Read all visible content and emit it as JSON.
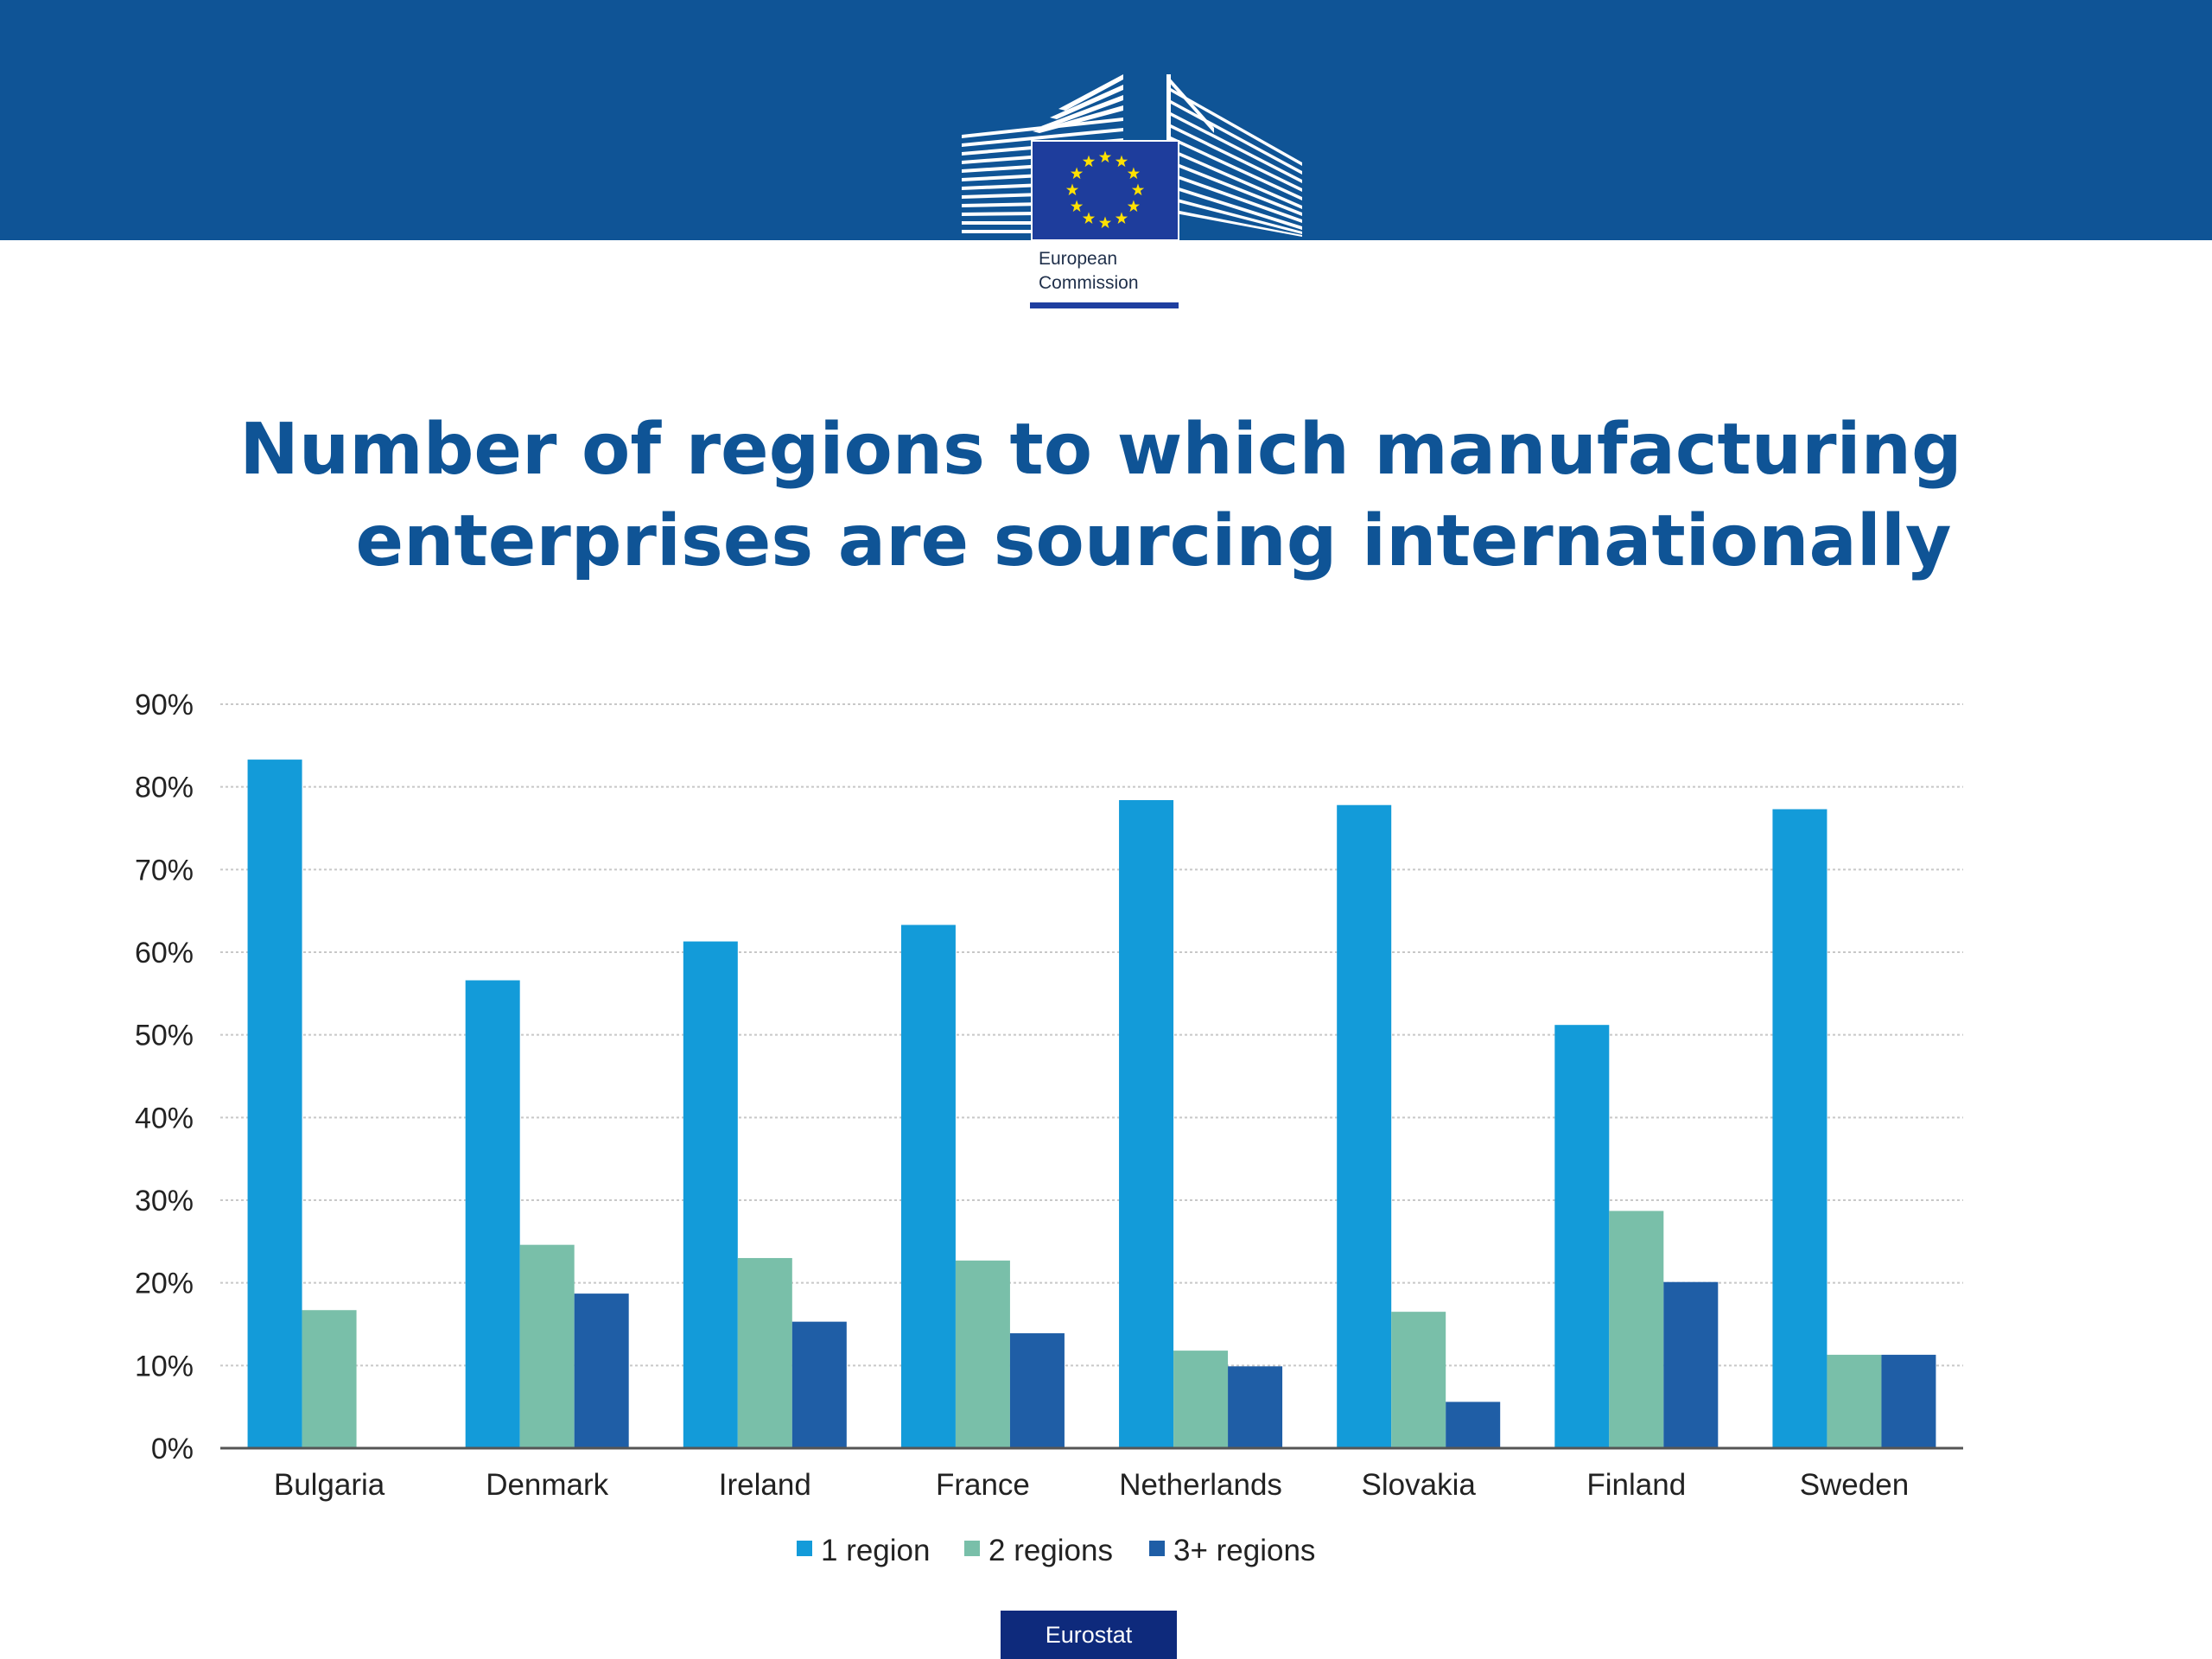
{
  "header": {
    "logo_text_line1": "European",
    "logo_text_line2": "Commission",
    "brand_color": "#0f5496"
  },
  "chart_data": {
    "type": "bar",
    "title_line1": "Number of regions to which manufacturing",
    "title_line2": "enterprises are sourcing internationally",
    "categories": [
      "Bulgaria",
      "Denmark",
      "Ireland",
      "France",
      "Netherlands",
      "Slovakia",
      "Finland",
      "Sweden"
    ],
    "series": [
      {
        "name": "1 region",
        "color": "#139bd9",
        "values": [
          83.3,
          56.6,
          61.3,
          63.3,
          78.4,
          77.8,
          51.2,
          77.3
        ]
      },
      {
        "name": "2 regions",
        "color": "#79bfa9",
        "values": [
          16.7,
          24.6,
          23.0,
          22.7,
          11.8,
          16.5,
          28.7,
          11.3
        ]
      },
      {
        "name": "3+ regions",
        "color": "#1f5ea6",
        "values": [
          0,
          18.7,
          15.3,
          13.9,
          9.9,
          5.6,
          20.1,
          11.3
        ]
      }
    ],
    "ylim": [
      0,
      90
    ],
    "yticks": [
      "0%",
      "10%",
      "20%",
      "30%",
      "40%",
      "50%",
      "60%",
      "70%",
      "80%",
      "90%"
    ],
    "grid": true,
    "legend": "bottom",
    "xlabel": "",
    "ylabel": ""
  },
  "footer": {
    "badge_label": "Eurostat"
  }
}
